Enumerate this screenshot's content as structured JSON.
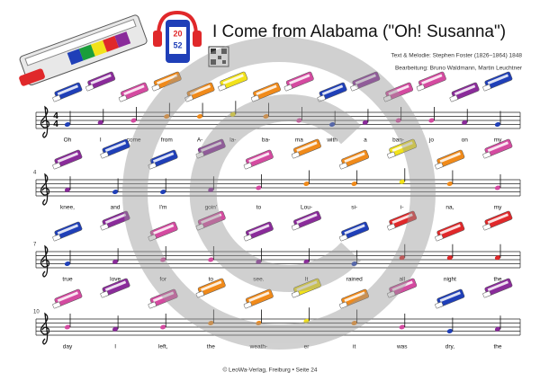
{
  "header": {
    "title": "I Come from Alabama (\"Oh! Susanna\")",
    "credits": [
      "Text & Melodie: Stephen Foster (1826–1864) 1848",
      "Bearbeitung: Bruno Waldmann, Martin Leuchtner"
    ],
    "app_badge": [
      "20",
      "52"
    ]
  },
  "staves": [
    {
      "time_signature": [
        "4",
        "4"
      ],
      "lyrics": [
        "Oh",
        "I",
        "come",
        "from",
        "A-",
        "la-",
        "ba-",
        "ma",
        "with",
        "a",
        "ban-",
        "jo",
        "on",
        "my"
      ]
    },
    {
      "measure_number": "4",
      "lyrics": [
        "knee,",
        "and",
        "I'm",
        "goin'",
        "to",
        "Lou-",
        "si-",
        "i-",
        "na,",
        "my"
      ]
    },
    {
      "measure_number": "7",
      "lyrics": [
        "true",
        "love",
        "for",
        "to",
        "see.",
        "It",
        "rained",
        "all",
        "night",
        "the"
      ]
    },
    {
      "measure_number": "10",
      "lyrics": [
        "day",
        "I",
        "left,",
        "the",
        "weath-",
        "er",
        "it",
        "was",
        "dry,",
        "the"
      ]
    }
  ],
  "footer": "© LeoWa-Verlag, Freiburg  •  Seite 24"
}
